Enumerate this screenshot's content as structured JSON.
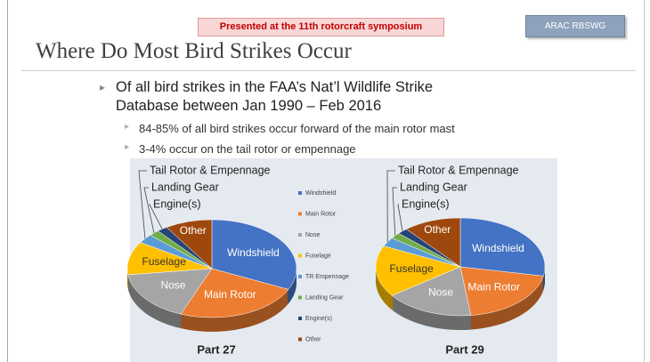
{
  "header": {
    "banner": "Presented at the 11th rotorcraft symposium",
    "badge": "ARAC RBSWG"
  },
  "title": "Where Do Most Bird Strikes Occur",
  "bullet": {
    "text": "Of all bird strikes in the FAA’s Nat’l Wildlife Strike Database between Jan 1990 – Feb 2016",
    "sub": [
      "84-85% of all bird strikes occur forward of the main rotor mast",
      "3-4% occur on the tail rotor or empennage"
    ]
  },
  "chart_data": [
    {
      "type": "pie",
      "title": "Part 27",
      "categories": [
        "Windshield",
        "Main Rotor",
        "Nose",
        "Fuselage",
        "TR Empennage",
        "Landing Gear",
        "Engine(s)",
        "Other"
      ],
      "values": [
        32,
        24,
        17,
        11,
        3,
        2,
        2,
        9
      ],
      "colors": [
        "#4472c4",
        "#ed7d31",
        "#a5a5a5",
        "#ffc000",
        "#5b9bd5",
        "#70ad47",
        "#264478",
        "#9e480e"
      ],
      "legend": "center",
      "annotations": [
        "Tail Rotor & Empennage",
        "Landing Gear",
        "Engine(s)"
      ]
    },
    {
      "type": "pie",
      "title": "Part 29",
      "categories": [
        "Windshield",
        "Main Rotor",
        "Nose",
        "Fuselage",
        "TR Empennage",
        "Landing Gear",
        "Engine(s)",
        "Other"
      ],
      "values": [
        28,
        20,
        17,
        17,
        3,
        2,
        2,
        11
      ],
      "colors": [
        "#4472c4",
        "#ed7d31",
        "#a5a5a5",
        "#ffc000",
        "#5b9bd5",
        "#70ad47",
        "#264478",
        "#9e480e"
      ],
      "annotations": [
        "Tail Rotor & Empennage",
        "Landing Gear",
        "Engine(s)"
      ]
    }
  ]
}
